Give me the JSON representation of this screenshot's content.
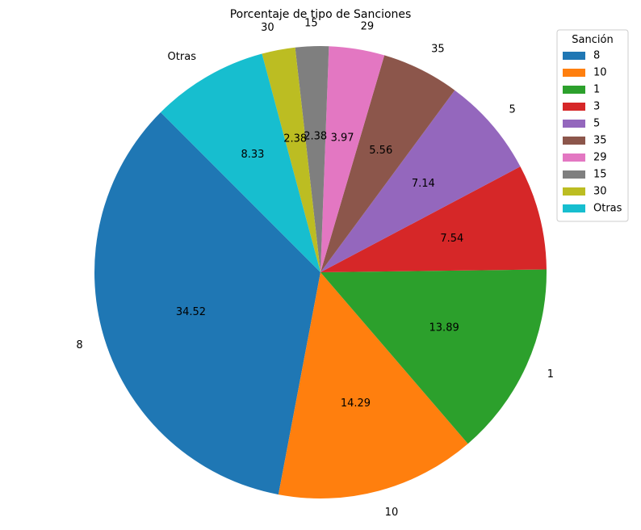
{
  "chart_data": {
    "type": "pie",
    "title": "Porcentaje de tipo de Sanciones",
    "categories": [
      "8",
      "10",
      "1",
      "3",
      "5",
      "35",
      "29",
      "15",
      "30",
      "Otras"
    ],
    "values": [
      34.52,
      14.29,
      13.89,
      7.54,
      7.14,
      5.56,
      3.97,
      2.38,
      2.38,
      8.33
    ],
    "value_labels": [
      "34.52",
      "14.29",
      "13.89",
      "7.54",
      "7.14",
      "5.56",
      "3.97",
      "2.38",
      "2.38",
      "8.33"
    ],
    "colors": [
      "#1f77b4",
      "#ff7f0e",
      "#2ca02c",
      "#d62728",
      "#9467bd",
      "#8c564b",
      "#e377c2",
      "#7f7f7f",
      "#bcbd22",
      "#17becf"
    ],
    "start_angle_deg": 135,
    "direction": "counterclockwise",
    "legend": {
      "title": "Sanción",
      "placement": "top-right",
      "entries": [
        "8",
        "10",
        "1",
        "3",
        "5",
        "35",
        "29",
        "15",
        "30",
        "Otras"
      ]
    }
  }
}
